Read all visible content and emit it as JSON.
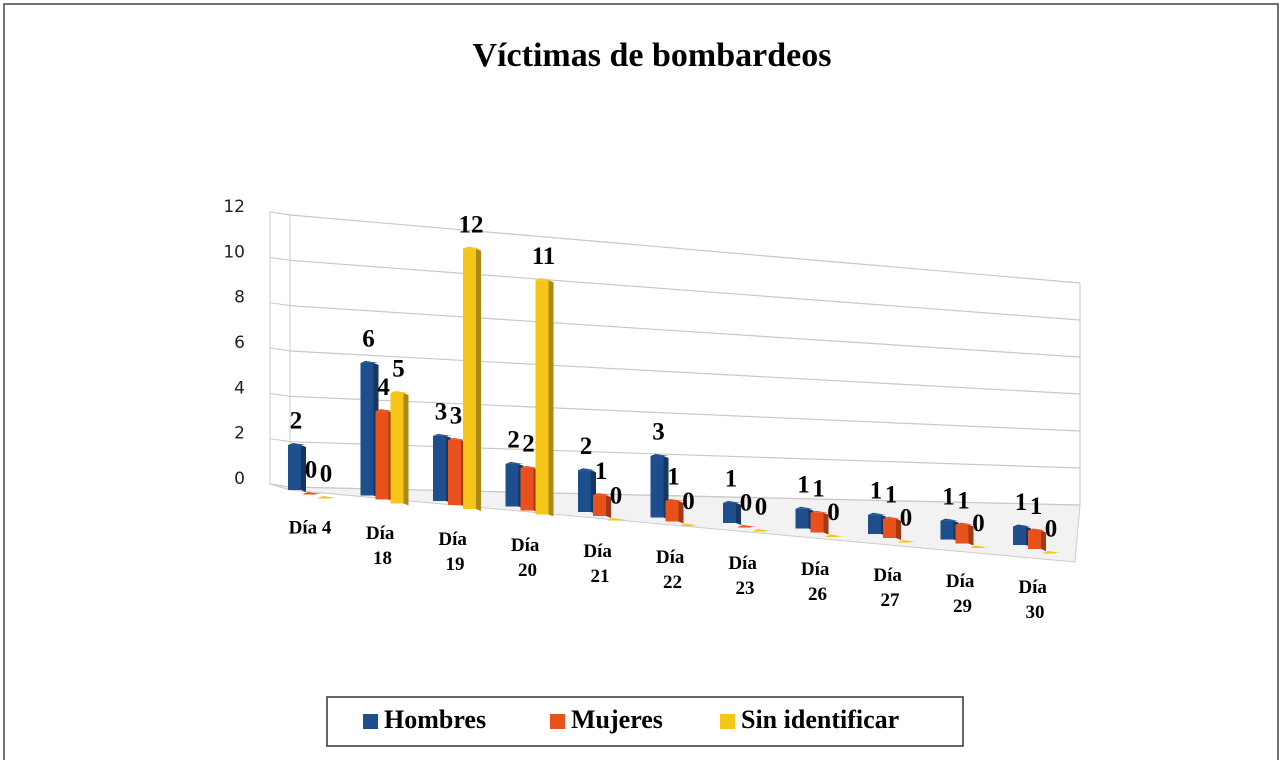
{
  "chart_data": {
    "type": "bar3d",
    "title": "Víctimas de bombardeos",
    "categories": [
      "Día 4",
      "Día 18",
      "Día 19",
      "Día 20",
      "Día 21",
      "Día 22",
      "Día 23",
      "Día 26",
      "Día 27",
      "Día 29",
      "Día 30"
    ],
    "series": [
      {
        "name": "Hombres",
        "color": "#1f4e8c",
        "values": [
          2,
          6,
          3,
          2,
          2,
          3,
          1,
          1,
          1,
          1,
          1
        ]
      },
      {
        "name": "Mujeres",
        "color": "#e8501c",
        "values": [
          0,
          4,
          3,
          2,
          1,
          1,
          0,
          1,
          1,
          1,
          1
        ]
      },
      {
        "name": "Sin identificar",
        "color": "#f5c518",
        "values": [
          0,
          5,
          12,
          11,
          0,
          0,
          0,
          0,
          0,
          0,
          0
        ]
      }
    ],
    "ylim": [
      0,
      12
    ],
    "yticks": [
      0,
      2,
      4,
      6,
      8,
      10,
      12
    ],
    "grid": true,
    "legend": "bottom"
  }
}
